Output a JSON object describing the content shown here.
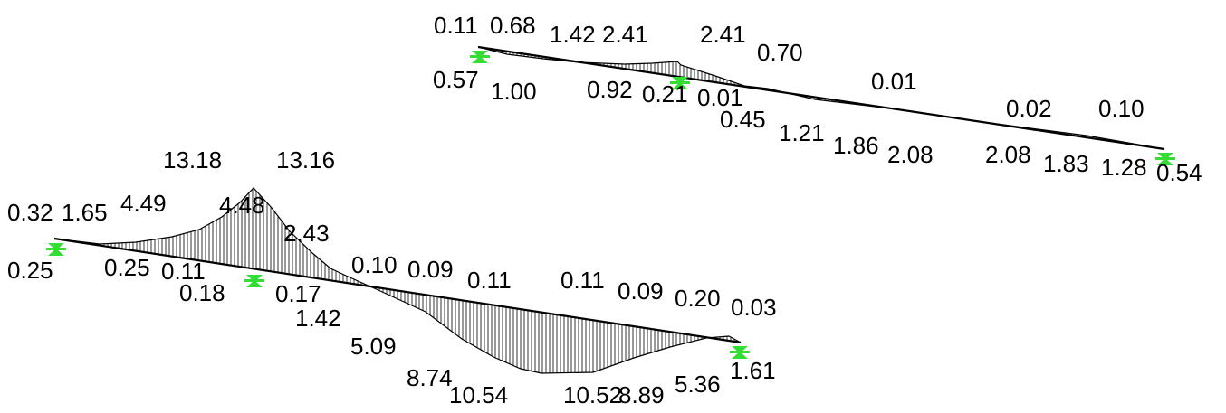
{
  "colors": {
    "background": "#ffffff",
    "member": "#000000",
    "hatch": "#000000",
    "support": "#33dd33"
  },
  "icons": [
    "support-icon"
  ],
  "diagrams": [
    {
      "name": "upper",
      "labels": [
        "0.11",
        "0.68",
        "1.42",
        "2.41",
        "2.41",
        "0.70",
        "0.57",
        "1.00",
        "0.92",
        "0.21",
        "0.01",
        "0.01",
        "0.45",
        "1.21",
        "1.86",
        "2.08",
        "0.02",
        "0.10",
        "2.08",
        "1.83",
        "1.28",
        "0.54"
      ]
    },
    {
      "name": "lower",
      "labels": [
        "13.18",
        "13.16",
        "0.32",
        "1.65",
        "4.49",
        "4.48",
        "2.43",
        "0.25",
        "0.25",
        "0.11",
        "0.18",
        "0.17",
        "0.10",
        "0.09",
        "0.11",
        "0.11",
        "0.09",
        "0.20",
        "0.03",
        "1.42",
        "5.09",
        "8.74",
        "10.54",
        "10.52",
        "8.89",
        "5.36",
        "1.61"
      ]
    }
  ]
}
